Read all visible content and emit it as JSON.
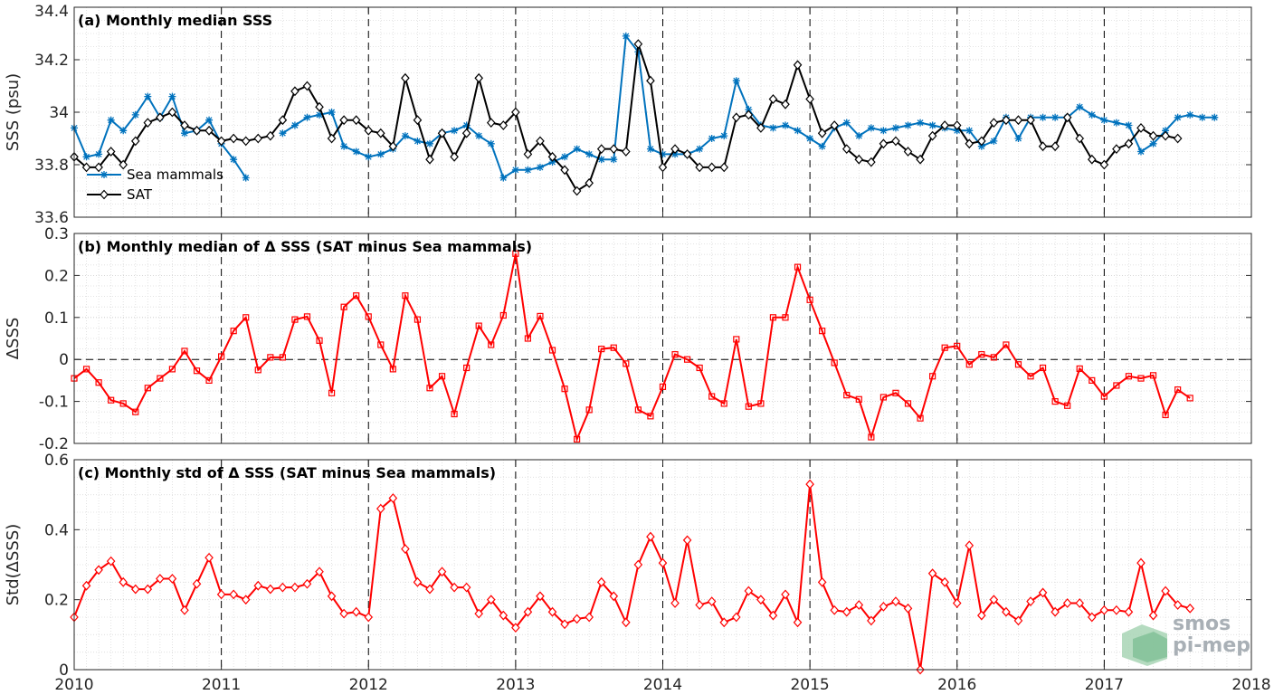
{
  "chart_data": [
    {
      "type": "line",
      "title": "(a) Monthly median SSS",
      "ylabel": "SSS (psu)",
      "xlim": [
        2010,
        2018
      ],
      "ylim": [
        33.6,
        34.4
      ],
      "yticks": [
        33.6,
        33.8,
        34,
        34.2,
        34.4
      ],
      "ytick_labels": [
        "33.6",
        "33.8",
        "34",
        "34.2",
        "34.4"
      ],
      "grid": true,
      "legend_position": "bottom-left",
      "series": [
        {
          "name": "Sea mammals",
          "color": "#0072bd",
          "marker": "asterisk",
          "x_start": 2010.0,
          "x_step": 0.08333,
          "values": [
            33.94,
            33.83,
            33.84,
            33.97,
            33.93,
            33.99,
            34.06,
            33.98,
            34.06,
            33.92,
            33.93,
            33.97,
            33.88,
            33.82,
            33.75,
            null,
            null,
            33.92,
            33.95,
            33.98,
            33.99,
            34.0,
            33.87,
            33.85,
            33.83,
            33.84,
            33.86,
            33.91,
            33.89,
            33.88,
            33.92,
            33.93,
            33.95,
            33.91,
            33.88,
            33.75,
            33.78,
            33.78,
            33.79,
            33.81,
            33.83,
            33.86,
            33.84,
            33.82,
            33.82,
            34.29,
            34.23,
            33.86,
            33.84,
            33.84,
            33.84,
            33.86,
            33.9,
            33.91,
            34.12,
            34.01,
            33.95,
            33.94,
            33.95,
            33.93,
            33.9,
            33.87,
            33.94,
            33.96,
            33.91,
            33.94,
            33.93,
            33.94,
            33.95,
            33.96,
            33.95,
            33.94,
            33.93,
            33.93,
            33.87,
            33.89,
            33.98,
            33.9,
            33.98,
            33.98,
            33.98,
            33.98,
            34.02,
            33.99,
            33.97,
            33.96,
            33.95,
            33.85,
            33.88,
            33.93,
            33.98,
            33.99,
            33.98,
            33.98
          ]
        },
        {
          "name": "SAT",
          "color": "#000000",
          "marker": "diamond",
          "x_start": 2010.0,
          "x_step": 0.08333,
          "values": [
            33.83,
            33.79,
            33.79,
            33.85,
            33.8,
            33.89,
            33.96,
            33.98,
            34.0,
            33.95,
            33.93,
            33.93,
            33.89,
            33.9,
            33.89,
            33.9,
            33.91,
            33.97,
            34.08,
            34.1,
            34.02,
            33.9,
            33.97,
            33.97,
            33.93,
            33.92,
            33.87,
            34.13,
            33.97,
            33.82,
            33.92,
            33.83,
            33.92,
            34.13,
            33.96,
            33.95,
            34.0,
            33.84,
            33.89,
            33.83,
            33.78,
            33.7,
            33.73,
            33.86,
            33.86,
            33.85,
            34.26,
            34.12,
            33.79,
            33.86,
            33.84,
            33.79,
            33.79,
            33.79,
            33.98,
            33.99,
            33.94,
            34.05,
            34.03,
            34.18,
            34.05,
            33.92,
            33.95,
            33.86,
            33.82,
            33.81,
            33.88,
            33.89,
            33.85,
            33.82,
            33.91,
            33.95,
            33.95,
            33.88,
            33.89,
            33.96,
            33.97,
            33.97,
            33.97,
            33.87,
            33.87,
            33.98,
            33.9,
            33.82,
            33.8,
            33.86,
            33.88,
            33.94,
            33.91,
            33.91,
            33.9
          ]
        }
      ]
    },
    {
      "type": "line",
      "title": "(b) Monthly median of Δ SSS (SAT minus Sea mammals)",
      "ylabel": "ΔSSS",
      "xlim": [
        2010,
        2018
      ],
      "ylim": [
        -0.2,
        0.3
      ],
      "yticks": [
        -0.2,
        -0.1,
        0,
        0.1,
        0.2,
        0.3
      ],
      "ytick_labels": [
        "-0.2",
        "-0.1",
        "0",
        "0.1",
        "0.2",
        "0.3"
      ],
      "grid": true,
      "series": [
        {
          "color": "#ff0000",
          "marker": "square",
          "x_start": 2010.0,
          "x_step": 0.08333,
          "values": [
            -0.045,
            -0.023,
            -0.055,
            -0.097,
            -0.105,
            -0.125,
            -0.068,
            -0.045,
            -0.023,
            0.02,
            -0.027,
            -0.05,
            0.007,
            0.068,
            0.1,
            -0.025,
            0.005,
            0.005,
            0.095,
            0.102,
            0.045,
            -0.08,
            0.125,
            0.152,
            0.102,
            0.035,
            -0.023,
            0.152,
            0.095,
            -0.068,
            -0.04,
            -0.13,
            -0.02,
            0.08,
            0.035,
            0.105,
            0.252,
            0.05,
            0.103,
            0.022,
            -0.07,
            -0.19,
            -0.12,
            0.025,
            0.028,
            -0.01,
            -0.12,
            -0.135,
            -0.065,
            0.012,
            0.0,
            -0.02,
            -0.088,
            -0.105,
            0.048,
            -0.112,
            -0.105,
            0.1,
            0.1,
            0.22,
            0.142,
            0.068,
            -0.008,
            -0.085,
            -0.095,
            -0.185,
            -0.09,
            -0.08,
            -0.105,
            -0.14,
            -0.04,
            0.028,
            0.032,
            -0.012,
            0.012,
            0.005,
            0.035,
            -0.012,
            -0.04,
            -0.02,
            -0.1,
            -0.11,
            -0.022,
            -0.05,
            -0.088,
            -0.062,
            -0.04,
            -0.045,
            -0.038,
            -0.132,
            -0.072,
            -0.092
          ]
        }
      ]
    },
    {
      "type": "line",
      "title": "(c) Monthly std of Δ SSS (SAT minus Sea mammals)",
      "ylabel": "Std(ΔSSS)",
      "xlabel_ticks": [
        "2010",
        "2011",
        "2012",
        "2013",
        "2014",
        "2015",
        "2016",
        "2017",
        "2018"
      ],
      "xlim": [
        2010,
        2018
      ],
      "ylim": [
        0,
        0.6
      ],
      "yticks": [
        0,
        0.2,
        0.4,
        0.6
      ],
      "ytick_labels": [
        "0",
        "0.2",
        "0.4",
        "0.6"
      ],
      "grid": true,
      "series": [
        {
          "color": "#ff0000",
          "marker": "diamond",
          "x_start": 2010.0,
          "x_step": 0.08333,
          "values": [
            0.15,
            0.24,
            0.285,
            0.31,
            0.25,
            0.23,
            0.23,
            0.26,
            0.26,
            0.17,
            0.245,
            0.32,
            0.215,
            0.215,
            0.2,
            0.24,
            0.23,
            0.235,
            0.235,
            0.245,
            0.28,
            0.21,
            0.16,
            0.165,
            0.15,
            0.46,
            0.49,
            0.345,
            0.25,
            0.23,
            0.28,
            0.235,
            0.235,
            0.16,
            0.2,
            0.155,
            0.12,
            0.165,
            0.21,
            0.165,
            0.13,
            0.145,
            0.15,
            0.25,
            0.21,
            0.135,
            0.3,
            0.38,
            0.305,
            0.19,
            0.37,
            0.185,
            0.195,
            0.135,
            0.15,
            0.225,
            0.2,
            0.155,
            0.215,
            0.135,
            0.53,
            0.25,
            0.17,
            0.165,
            0.185,
            0.14,
            0.18,
            0.195,
            0.175,
            0.0,
            0.275,
            0.25,
            0.19,
            0.355,
            0.155,
            0.2,
            0.165,
            0.14,
            0.195,
            0.22,
            0.165,
            0.19,
            0.19,
            0.15,
            0.17,
            0.17,
            0.165,
            0.305,
            0.155,
            0.225,
            0.185,
            0.175
          ]
        }
      ]
    }
  ],
  "logo": {
    "line1": "smos",
    "line2": "pi-mep"
  }
}
